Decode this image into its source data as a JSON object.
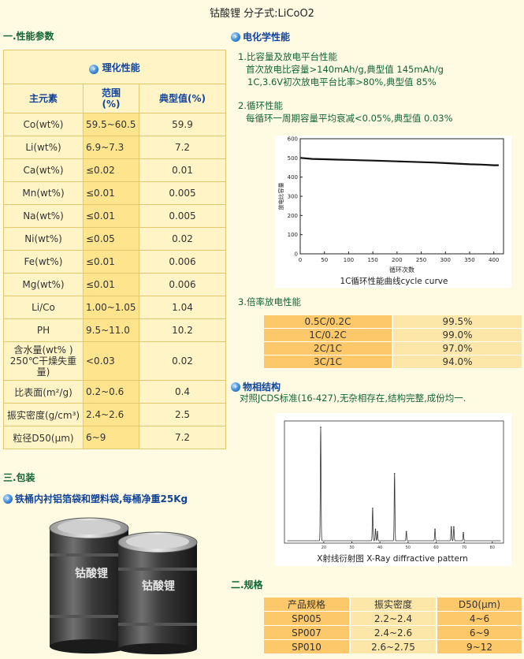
{
  "title": "钴酸锂  分子式:LiCoO2",
  "section1": {
    "heading": "一.性能参数",
    "table": {
      "header": "理化性能",
      "columns": [
        "主元素",
        "范围\n(%)",
        "典型值(%)"
      ],
      "rows": [
        {
          "element": "Co(wt%)",
          "range": "59.5~60.5",
          "typical": "59.9"
        },
        {
          "element": "Li(wt%)",
          "range": "6.9~7.3",
          "typical": "7.2"
        },
        {
          "element": "Ca(wt%)",
          "range": "≤0.02",
          "typical": "0.01"
        },
        {
          "element": "Mn(wt%)",
          "range": "≤0.01",
          "typical": "0.005"
        },
        {
          "element": "Na(wt%)",
          "range": "≤0.01",
          "typical": "0.005"
        },
        {
          "element": "Ni(wt%)",
          "range": "≤0.05",
          "typical": "0.02"
        },
        {
          "element": "Fe(wt%)",
          "range": "≤0.01",
          "typical": "0.006"
        },
        {
          "element": "Mg(wt%)",
          "range": "≤0.01",
          "typical": "0.006"
        },
        {
          "element": "Li/Co",
          "range": "1.00~1.05",
          "typical": "1.04"
        },
        {
          "element": "PH",
          "range": "9.5~11.0",
          "typical": "10.2"
        },
        {
          "element": "含水量(wt% )\n250℃干燥失重量)",
          "range": "<0.03",
          "typical": "0.02"
        },
        {
          "element": "比表面(m²/g)",
          "range": "0.2~0.6",
          "typical": "0.4"
        },
        {
          "element": "振实密度(g/cm³)",
          "range": "2.4~2.6",
          "typical": "2.5"
        },
        {
          "element": "粒径D50(μm)",
          "range": "6~9",
          "typical": "7.2"
        }
      ]
    }
  },
  "electrochem": {
    "heading": "电化学性能",
    "items": [
      {
        "title": "1.比容量及放电平台性能",
        "lines": [
          "首次放电比容量>140mAh/g,典型值  145mAh/g",
          "1C,3.6V初次放电平台比率>80%,典型值  85%"
        ]
      },
      {
        "title": "2.循环性能",
        "lines": [
          "每循环一周期容量平均衰减<0.05%,典型值  0.03%"
        ]
      }
    ],
    "cycle_caption": "1C循环性能曲线cycle curve",
    "rate_title": "3.倍率放电性能",
    "rate_rows": [
      {
        "label": "0.5C/0.2C",
        "value": "99.5%"
      },
      {
        "label": "1C/0.2C",
        "value": "99.0%"
      },
      {
        "label": "2C/1C",
        "value": "97.0%"
      },
      {
        "label": "3C/1C",
        "value": "94.0%"
      }
    ]
  },
  "phase": {
    "heading": "物相结构",
    "text": "对照JCDS标准(16-427),无杂相存在,结构完整,成份均一.",
    "xrd_caption": "X射线衍射图 X-Ray diffractive pattern"
  },
  "packaging": {
    "heading": "三.包装",
    "subheading": "铁桶内衬铝箔袋和塑料袋,每桶净重25Kg",
    "drum_label": "钴酸锂"
  },
  "spec": {
    "heading": "二.规格",
    "columns": [
      "产品规格",
      "振实密度",
      "D50(μm)"
    ],
    "rows": [
      [
        "SP005",
        "2.2~2.4",
        "4~6"
      ],
      [
        "SP007",
        "2.4~2.6",
        "6~9"
      ],
      [
        "SP010",
        "2.6~2.75",
        "9~12"
      ]
    ]
  },
  "colors": {
    "green_text": "#116633",
    "blue_text": "#114499",
    "table_border": "#e3c86e",
    "orange": "#fcc86a",
    "light_yellow": "#fde7a8"
  },
  "chart_data": [
    {
      "type": "line",
      "xlabel": "循环次数",
      "ylabel": "放电比容量",
      "xlim": [
        0,
        420
      ],
      "ylim": [
        0,
        600
      ],
      "xticks": [
        0,
        50,
        100,
        150,
        200,
        250,
        300,
        350,
        400
      ],
      "yticks": [
        0,
        100,
        200,
        300,
        400,
        500,
        600
      ],
      "x": [
        1,
        25,
        50,
        75,
        100,
        125,
        150,
        175,
        200,
        225,
        250,
        275,
        300,
        325,
        350,
        375,
        400,
        410
      ],
      "y": [
        500,
        495,
        493,
        491,
        490,
        488,
        486,
        484,
        482,
        480,
        478,
        476,
        473,
        470,
        467,
        465,
        462,
        462
      ]
    },
    {
      "type": "line",
      "xlim": [
        10,
        80
      ],
      "xticks": [
        20,
        30,
        40,
        50,
        60,
        70,
        80
      ],
      "peaks": [
        {
          "x": 18.9,
          "h": 0.98
        },
        {
          "x": 37.4,
          "h": 0.28
        },
        {
          "x": 38.4,
          "h": 0.1
        },
        {
          "x": 39.1,
          "h": 0.08
        },
        {
          "x": 45.2,
          "h": 0.58
        },
        {
          "x": 49.4,
          "h": 0.08
        },
        {
          "x": 59.6,
          "h": 0.1
        },
        {
          "x": 65.4,
          "h": 0.12
        },
        {
          "x": 66.3,
          "h": 0.12
        },
        {
          "x": 69.7,
          "h": 0.07
        }
      ]
    }
  ]
}
